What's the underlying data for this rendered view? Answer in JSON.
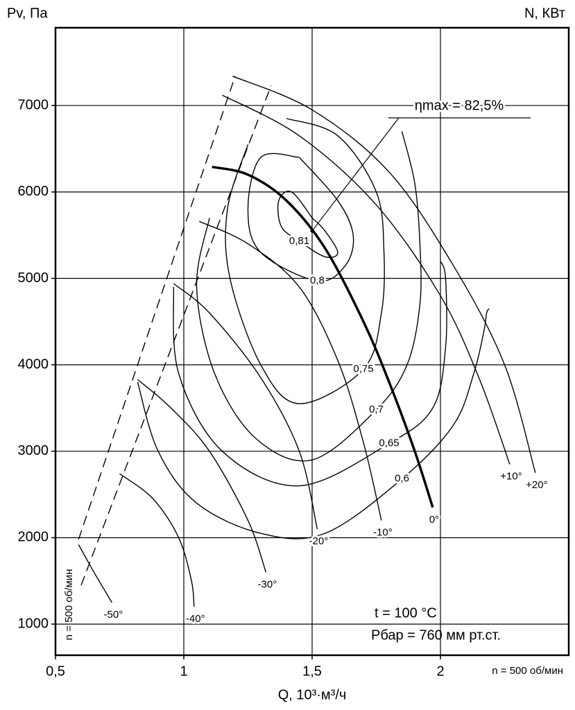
{
  "chart_data": {
    "type": "line",
    "x_label": "Q, 10³·м³/ч",
    "y_label": "Pv, Па",
    "y2_label": "N, КВт",
    "xlim": [
      0.5,
      2.5
    ],
    "ylim": [
      640,
      7900
    ],
    "xticks": [
      {
        "value": 0.5,
        "label": "0,5"
      },
      1,
      {
        "value": 1.5,
        "label": "1,5"
      },
      2
    ],
    "yticks": [
      1000,
      2000,
      3000,
      4000,
      5000,
      6000,
      7000
    ],
    "grid": true,
    "color": "#000000",
    "annotation": {
      "text": "ηmax = 82,5%",
      "x": 1.5,
      "y": 5550
    },
    "notes": [
      "t = 100 °C",
      "Pбар = 760 мм рт.ст."
    ],
    "rpm_note": "n = 500 об/мин",
    "series": [
      {
        "name": "+20°",
        "kind": "blade",
        "x": [
          1.19,
          1.5,
          1.8,
          2.05,
          2.25,
          2.37
        ],
        "values": [
          7340,
          6950,
          6230,
          5150,
          4000,
          2750
        ]
      },
      {
        "name": "+10°",
        "kind": "blade",
        "x": [
          1.15,
          1.45,
          1.75,
          2.0,
          2.15,
          2.27
        ],
        "values": [
          7120,
          6650,
          5850,
          4800,
          3850,
          2850
        ]
      },
      {
        "name": "0°",
        "kind": "blade",
        "bold": true,
        "x": [
          1.11,
          1.25,
          1.4,
          1.55,
          1.7,
          1.8,
          1.9,
          1.97
        ],
        "values": [
          6290,
          6200,
          5900,
          5350,
          4500,
          3800,
          3000,
          2350
        ]
      },
      {
        "name": "-10°",
        "kind": "blade",
        "x": [
          1.06,
          1.25,
          1.45,
          1.6,
          1.7,
          1.77
        ],
        "values": [
          5660,
          5400,
          4900,
          4050,
          3100,
          2200
        ]
      },
      {
        "name": "-20°",
        "kind": "blade",
        "x": [
          0.96,
          1.1,
          1.3,
          1.45,
          1.52
        ],
        "values": [
          4940,
          4600,
          3850,
          3000,
          2100
        ]
      },
      {
        "name": "-30°",
        "kind": "blade",
        "x": [
          0.82,
          0.95,
          1.1,
          1.25,
          1.32
        ],
        "values": [
          3830,
          3500,
          3000,
          2200,
          1600
        ]
      },
      {
        "name": "-40°",
        "kind": "blade",
        "x": [
          0.75,
          0.88,
          0.98,
          1.03,
          1.04
        ],
        "values": [
          2740,
          2450,
          2000,
          1500,
          1200
        ]
      },
      {
        "name": "-50°",
        "kind": "blade",
        "x": [
          0.59,
          0.65,
          0.72
        ],
        "values": [
          1920,
          1600,
          1250
        ]
      },
      {
        "kind": "boundary",
        "dash": true,
        "x": [
          0.59,
          1.2
        ],
        "values": [
          1980,
          7340
        ]
      },
      {
        "kind": "boundary",
        "dash": true,
        "x": [
          0.6,
          1.34
        ],
        "values": [
          1450,
          7230
        ]
      },
      {
        "name": "0,81",
        "kind": "efficiency",
        "x": [
          1.5,
          1.42,
          1.37,
          1.38,
          1.45,
          1.55,
          1.6,
          1.55,
          1.5
        ],
        "values": [
          5700,
          6000,
          5900,
          5600,
          5430,
          5250,
          5300,
          5550,
          5700
        ]
      },
      {
        "name": "0,8",
        "kind": "efficiency",
        "x": [
          1.45,
          1.3,
          1.25,
          1.3,
          1.52,
          1.63,
          1.66,
          1.6,
          1.45
        ],
        "values": [
          6400,
          6400,
          5800,
          5300,
          4970,
          5150,
          5500,
          5900,
          6400
        ]
      },
      {
        "name": "0,75",
        "kind": "efficiency",
        "x": [
          1.25,
          1.17,
          1.18,
          1.3,
          1.45,
          1.7,
          1.77,
          1.78,
          1.75,
          1.6,
          1.4
        ],
        "values": [
          6550,
          5800,
          5000,
          4000,
          3550,
          3950,
          4600,
          5300,
          6000,
          6650,
          6850
        ]
      },
      {
        "name": "0,7",
        "kind": "efficiency",
        "x": [
          1.1,
          1.05,
          1.12,
          1.28,
          1.5,
          1.75,
          1.87,
          1.92,
          1.92,
          1.9,
          1.85
        ],
        "values": [
          5700,
          4900,
          3900,
          3150,
          2900,
          3480,
          4000,
          4700,
          5400,
          6100,
          6700
        ]
      },
      {
        "name": "0,65",
        "kind": "efficiency",
        "x": [
          0.96,
          0.98,
          1.15,
          1.45,
          1.8,
          1.97,
          2.02,
          2.02,
          2.0
        ],
        "values": [
          4900,
          3900,
          3000,
          2600,
          3090,
          3500,
          4200,
          5000,
          5200
        ]
      },
      {
        "name": "0,6",
        "kind": "efficiency",
        "x": [
          0.82,
          0.9,
          1.05,
          1.3,
          1.55,
          1.85,
          2.05,
          2.13,
          2.17,
          2.18,
          2.19
        ],
        "values": [
          3800,
          3000,
          2400,
          2050,
          2050,
          2680,
          3300,
          3900,
          4400,
          4600,
          4650
        ]
      }
    ]
  }
}
